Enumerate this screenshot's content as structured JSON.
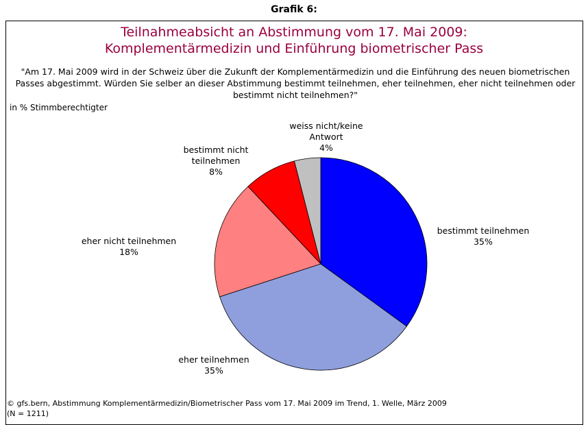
{
  "chart_data": {
    "type": "pie",
    "header": "Grafik 6:",
    "title": [
      "Teilnahmeabsicht an Abstimmung vom 17. Mai 2009:",
      "Komplementärmedizin und Einführung biometrischer Pass"
    ],
    "subtitle": "\"Am 17. Mai 2009 wird in der Schweiz über die Zukunft der Komplementärmedizin und die Einführung des neuen biometrischen Passes abgestimmt. Würden Sie selber an dieser Abstimmung bestimmt teilnehmen, eher teilnehmen, eher nicht teilnehmen oder bestimmt nicht teilnehmen?\"",
    "unit_label": "in % Stimmberechtigter",
    "categories": [
      "bestimmt teilnehmen",
      "eher teilnehmen",
      "eher nicht teilnehmen",
      "bestimmt nicht teilnehmen",
      "weiss nicht/keine Antwort"
    ],
    "values": [
      35,
      35,
      18,
      8,
      4
    ],
    "value_labels": [
      "35%",
      "35%",
      "18%",
      "8%",
      "4%"
    ],
    "colors": [
      "#0000ff",
      "#8f9fdd",
      "#ff8080",
      "#ff0000",
      "#c0c0c0"
    ],
    "footer": [
      "© gfs.bern, Abstimmung Komplementärmedizin/Biometrischer Pass vom 17. Mai 2009 im Trend, 1. Welle, März 2009",
      "(N = 1211)"
    ]
  }
}
